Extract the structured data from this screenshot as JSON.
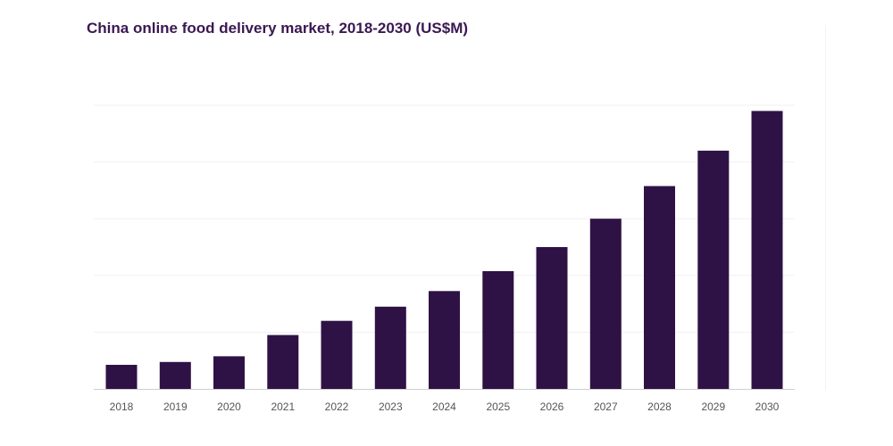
{
  "chart_data": {
    "type": "bar",
    "title": "China online food delivery market, 2018-2030 (US$M)",
    "xlabel": "",
    "ylabel": "",
    "categories": [
      "2018",
      "2019",
      "2020",
      "2021",
      "2022",
      "2023",
      "2024",
      "2025",
      "2026",
      "2027",
      "2028",
      "2029",
      "2030"
    ],
    "series": [
      {
        "values": [
          8.5,
          9.5,
          11.5,
          19,
          24,
          29,
          34.5,
          41.5,
          50,
          60,
          71.5,
          84,
          98
        ]
      }
    ],
    "ylim": [
      0,
      100
    ],
    "ygrid_values": [
      20,
      40,
      60,
      80,
      100
    ],
    "grid": true,
    "y_tick_labels_visible": false,
    "legend": "none",
    "colors": {
      "bar": "#2e1245",
      "grid": "#f0f0f0",
      "axis": "#cfcfcf",
      "title": "#3a1852",
      "tick_text": "#555555"
    }
  }
}
